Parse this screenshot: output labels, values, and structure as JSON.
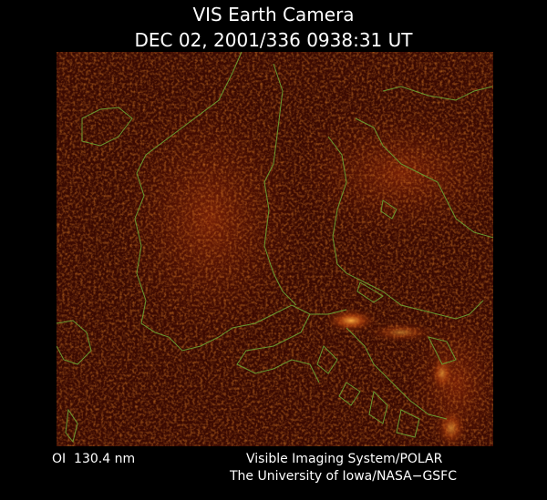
{
  "header": {
    "title": "VIS Earth Camera",
    "timestamp": "DEC 02, 2001/336 0938:31 UT"
  },
  "footer": {
    "filter": "OI  130.4 nm",
    "instrument": "Visible Imaging System/POLAR",
    "institution": "The University of Iowa/NASA−GSFC"
  }
}
